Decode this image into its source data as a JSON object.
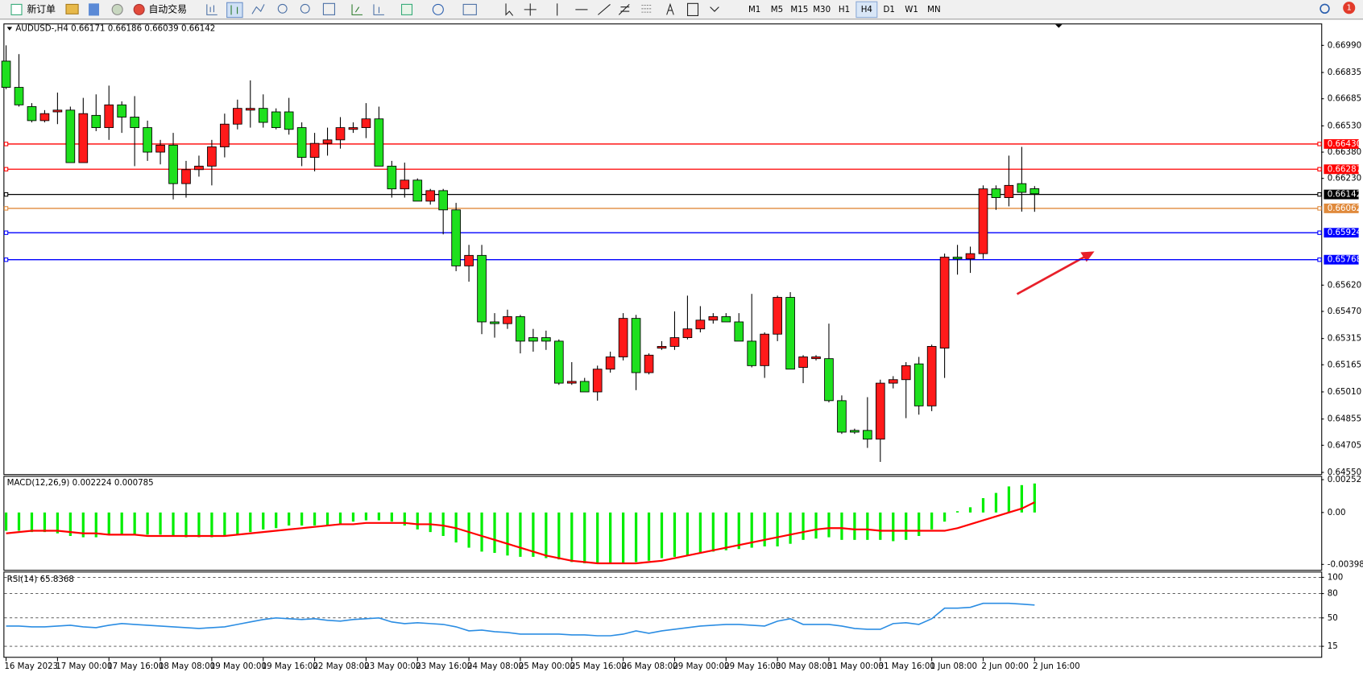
{
  "toolbar": {
    "new_order": "新订单",
    "auto_trading": "自动交易",
    "timeframes": [
      "M1",
      "M5",
      "M15",
      "M30",
      "H1",
      "H4",
      "D1",
      "W1",
      "MN"
    ],
    "active_timeframe": "H4",
    "notifications": 1
  },
  "chart_data": [
    {
      "type": "candlestick",
      "title": "AUDUSD-,H4",
      "up_color": "#ff1a1a",
      "down_color": "#1ee01e",
      "categories": [
        "16 May 2023",
        null,
        null,
        null,
        "17 May 00:00",
        null,
        null,
        null,
        "17 May 16:00",
        null,
        null,
        null,
        "18 May 08:00",
        null,
        null,
        null,
        "19 May 00:00",
        null,
        null,
        null,
        "19 May 16:00",
        null,
        null,
        null,
        "22 May 08:00",
        null,
        null,
        null,
        "23 May 00:00",
        null,
        null,
        null,
        "23 May 16:00",
        null,
        null,
        null,
        "24 May 08:00",
        null,
        null,
        null,
        "25 May 00:00",
        null,
        null,
        null,
        "25 May 16:00",
        null,
        null,
        null,
        "26 May 08:00",
        null,
        null,
        null,
        "29 May 00:00",
        null,
        null,
        null,
        "29 May 16:00",
        null,
        null,
        null,
        "30 May 08:00",
        null,
        null,
        null,
        "31 May 00:00",
        null,
        null,
        null,
        "31 May 16:00",
        null,
        null,
        null,
        "1 Jun 08:00",
        null,
        null,
        null,
        "2 Jun 00:00",
        null,
        null,
        null,
        "2 Jun 16:00"
      ],
      "open": [
        0.669,
        0.6675,
        0.6664,
        0.6656,
        0.6661,
        0.6662,
        0.6632,
        0.6659,
        0.6652,
        0.6665,
        0.6658,
        0.6652,
        0.6638,
        0.6642,
        0.662,
        0.6628,
        0.663,
        0.6641,
        0.6654,
        0.6662,
        0.6663,
        0.6661,
        0.6661,
        0.6652,
        0.6635,
        0.6643,
        0.6645,
        0.6651,
        0.6652,
        0.6657,
        0.663,
        0.6617,
        0.6622,
        0.661,
        0.6616,
        0.6605,
        0.6573,
        0.6579,
        0.6541,
        0.654,
        0.6544,
        0.6532,
        0.6532,
        0.653,
        0.6506,
        0.6507,
        0.6501,
        0.6514,
        0.6521,
        0.6543,
        0.6512,
        0.6526,
        0.6527,
        0.6532,
        0.6537,
        0.6542,
        0.6544,
        0.6541,
        0.653,
        0.6516,
        0.6534,
        0.6555,
        0.6515,
        0.652,
        0.652,
        0.6496,
        0.6479,
        0.6479,
        0.6474,
        0.6506,
        0.6508,
        0.6517,
        0.6493,
        0.6526,
        0.6578,
        0.6577,
        0.658,
        0.6617,
        0.6612,
        0.662,
        0.66171
      ],
      "high": [
        0.6699,
        0.6694,
        0.6666,
        0.6662,
        0.6672,
        0.6664,
        0.6669,
        0.6671,
        0.6676,
        0.6667,
        0.667,
        0.6656,
        0.6645,
        0.6649,
        0.6633,
        0.6636,
        0.6645,
        0.666,
        0.6668,
        0.6679,
        0.6671,
        0.6663,
        0.6669,
        0.6655,
        0.6649,
        0.6652,
        0.6658,
        0.6655,
        0.6666,
        0.6664,
        0.6633,
        0.6632,
        0.6623,
        0.6617,
        0.6617,
        0.6609,
        0.6585,
        0.6585,
        0.6546,
        0.6548,
        0.6545,
        0.6537,
        0.6536,
        0.6531,
        0.6518,
        0.6509,
        0.6516,
        0.6524,
        0.6546,
        0.6545,
        0.6523,
        0.653,
        0.6547,
        0.6556,
        0.655,
        0.6546,
        0.6546,
        0.6546,
        0.6557,
        0.6535,
        0.6556,
        0.6558,
        0.6522,
        0.6522,
        0.654,
        0.6499,
        0.648,
        0.6498,
        0.6508,
        0.651,
        0.6518,
        0.6521,
        0.6528,
        0.658,
        0.6585,
        0.6584,
        0.6619,
        0.6619,
        0.6636,
        0.6641,
        0.66186
      ],
      "low": [
        0.6674,
        0.6664,
        0.6655,
        0.6655,
        0.6654,
        0.6632,
        0.6632,
        0.665,
        0.6645,
        0.6649,
        0.663,
        0.6633,
        0.6631,
        0.6611,
        0.6612,
        0.6624,
        0.6619,
        0.6635,
        0.6651,
        0.6652,
        0.6652,
        0.6651,
        0.6648,
        0.663,
        0.6627,
        0.6636,
        0.664,
        0.6649,
        0.6646,
        0.663,
        0.6612,
        0.6612,
        0.661,
        0.6608,
        0.6591,
        0.657,
        0.6564,
        0.6534,
        0.6532,
        0.6537,
        0.6523,
        0.6524,
        0.6525,
        0.6505,
        0.6505,
        0.6501,
        0.6496,
        0.6512,
        0.6519,
        0.6502,
        0.6511,
        0.6525,
        0.6525,
        0.6531,
        0.6535,
        0.654,
        0.6541,
        0.653,
        0.6515,
        0.6509,
        0.653,
        0.6514,
        0.6506,
        0.6519,
        0.6495,
        0.6477,
        0.6477,
        0.6469,
        0.6461,
        0.6503,
        0.6486,
        0.6488,
        0.649,
        0.6509,
        0.6568,
        0.6569,
        0.6577,
        0.6605,
        0.6607,
        0.6604,
        0.66039
      ],
      "close": [
        0.6675,
        0.6665,
        0.6656,
        0.666,
        0.6662,
        0.6632,
        0.666,
        0.6652,
        0.6665,
        0.6658,
        0.6652,
        0.6638,
        0.6642,
        0.662,
        0.6628,
        0.663,
        0.6641,
        0.6654,
        0.6663,
        0.6663,
        0.6655,
        0.6652,
        0.6651,
        0.6635,
        0.6643,
        0.6645,
        0.6652,
        0.6652,
        0.6657,
        0.663,
        0.6617,
        0.6622,
        0.661,
        0.6616,
        0.6605,
        0.6573,
        0.6579,
        0.6541,
        0.654,
        0.6544,
        0.653,
        0.653,
        0.653,
        0.6506,
        0.6507,
        0.6501,
        0.6514,
        0.6521,
        0.6543,
        0.6512,
        0.6522,
        0.6527,
        0.6532,
        0.6537,
        0.6542,
        0.6544,
        0.6541,
        0.653,
        0.6516,
        0.6534,
        0.6555,
        0.6514,
        0.6521,
        0.6521,
        0.6496,
        0.6478,
        0.6478,
        0.6474,
        0.6506,
        0.6508,
        0.6516,
        0.6493,
        0.6527,
        0.6578,
        0.6577,
        0.658,
        0.6617,
        0.6612,
        0.6619,
        0.6615,
        0.66142
      ],
      "ylim": [
        0.6454,
        0.6711
      ],
      "yticks": [
        {
          "value": 0.6699,
          "label": "0.66990"
        },
        0.66835,
        0.66685,
        {
          "value": 0.6653,
          "label": "0.66530"
        },
        {
          "value": 0.6638,
          "label": "0.66380"
        },
        {
          "value": 0.6623,
          "label": "0.66230"
        },
        {
          "value": 0.6562,
          "label": "0.65620"
        },
        {
          "value": 0.6547,
          "label": "0.65470"
        },
        0.65315,
        0.65165,
        {
          "value": 0.6501,
          "label": "0.65010"
        },
        0.64855,
        0.64705,
        {
          "value": 0.6455,
          "label": "0.64550"
        }
      ],
      "levels": [
        {
          "value": 0.6643,
          "label": "0.66430",
          "color": "#ff0000"
        },
        {
          "value": 0.66287,
          "color": "#ff0000"
        },
        {
          "value": 0.66142,
          "color": "#000000"
        },
        {
          "value": 0.66062,
          "color": "#e08a3c"
        },
        {
          "value": 0.65924,
          "color": "#0000ff"
        },
        {
          "value": 0.65768,
          "color": "#0000ff"
        }
      ]
    },
    {
      "type": "macd",
      "title": "MACD(12,26,9)",
      "histogram_color": "#00ee00",
      "signal_color": "#ff0000",
      "histogram": [
        -0.0014,
        -0.0014,
        -0.0015,
        -0.0015,
        -0.0016,
        -0.0018,
        -0.0019,
        -0.0019,
        -0.0017,
        -0.0017,
        -0.0017,
        -0.0017,
        -0.0017,
        -0.0018,
        -0.0019,
        -0.0019,
        -0.0019,
        -0.0018,
        -0.0017,
        -0.0015,
        -0.0013,
        -0.0012,
        -0.001,
        -0.001,
        -0.001,
        -0.001,
        -0.0009,
        -0.0007,
        -0.0006,
        -0.0006,
        -0.0007,
        -0.001,
        -0.0013,
        -0.0015,
        -0.0018,
        -0.0023,
        -0.0027,
        -0.003,
        -0.0031,
        -0.0033,
        -0.0034,
        -0.0034,
        -0.0035,
        -0.0036,
        -0.0038,
        -0.0039,
        -0.0039,
        -0.0039,
        -0.0039,
        -0.0038,
        -0.0037,
        -0.0035,
        -0.0034,
        -0.0033,
        -0.0031,
        -0.003,
        -0.0029,
        -0.0028,
        -0.0027,
        -0.0026,
        -0.0026,
        -0.0024,
        -0.0021,
        -0.002,
        -0.0019,
        -0.0021,
        -0.0021,
        -0.0021,
        -0.0021,
        -0.0022,
        -0.0021,
        -0.0018,
        -0.0013,
        -0.0007,
        0.0001,
        0.0004,
        0.0011,
        0.0015,
        0.002,
        0.0021,
        0.002224
      ],
      "signal": [
        -0.0016,
        -0.0015,
        -0.0014,
        -0.0014,
        -0.0014,
        -0.0015,
        -0.0016,
        -0.0016,
        -0.0017,
        -0.0017,
        -0.0017,
        -0.0018,
        -0.0018,
        -0.0018,
        -0.0018,
        -0.0018,
        -0.0018,
        -0.0018,
        -0.0017,
        -0.0016,
        -0.0015,
        -0.0014,
        -0.0013,
        -0.0012,
        -0.0011,
        -0.001,
        -0.0009,
        -0.0009,
        -0.0008,
        -0.0008,
        -0.0008,
        -0.0008,
        -0.0009,
        -0.0009,
        -0.001,
        -0.0012,
        -0.0015,
        -0.0018,
        -0.0021,
        -0.0024,
        -0.0027,
        -0.003,
        -0.0033,
        -0.0035,
        -0.0037,
        -0.0038,
        -0.0039,
        -0.0039,
        -0.0039,
        -0.0039,
        -0.0038,
        -0.0037,
        -0.0035,
        -0.0033,
        -0.0031,
        -0.0029,
        -0.0027,
        -0.0025,
        -0.0023,
        -0.0021,
        -0.0019,
        -0.0017,
        -0.0015,
        -0.0013,
        -0.0012,
        -0.0012,
        -0.0013,
        -0.0013,
        -0.0014,
        -0.0014,
        -0.0014,
        -0.0014,
        -0.0014,
        -0.0014,
        -0.0012,
        -0.0009,
        -0.0006,
        -0.0003,
        0.0,
        0.0003,
        0.000785
      ],
      "ylim": [
        -0.0044,
        0.00274
      ],
      "yticks": [
        0.00252,
        {
          "value": 0,
          "label": "0.00"
        },
        -0.003981
      ]
    },
    {
      "type": "line",
      "title": "RSI(14)",
      "color": "#2b8de3",
      "values": [
        40,
        40,
        39,
        39,
        40,
        41,
        39,
        38,
        41,
        43,
        42,
        41,
        40,
        39,
        38,
        37,
        38,
        39,
        42,
        45,
        48,
        50,
        49,
        48,
        49,
        47,
        46,
        48,
        49,
        50,
        45,
        43,
        44,
        43,
        42,
        39,
        34,
        35,
        33,
        32,
        30,
        30,
        30,
        30,
        29,
        29,
        28,
        28,
        30,
        34,
        31,
        34,
        36,
        38,
        40,
        41,
        42,
        42,
        41,
        40,
        46,
        49,
        42,
        42,
        42,
        40,
        37,
        36,
        36,
        43,
        44,
        42,
        49,
        62,
        62,
        63,
        68,
        68,
        68,
        67,
        65.8368
      ],
      "ylim": [
        2,
        106
      ],
      "yticks": [
        100,
        80,
        50,
        15
      ],
      "grid": "dashed"
    }
  ]
}
